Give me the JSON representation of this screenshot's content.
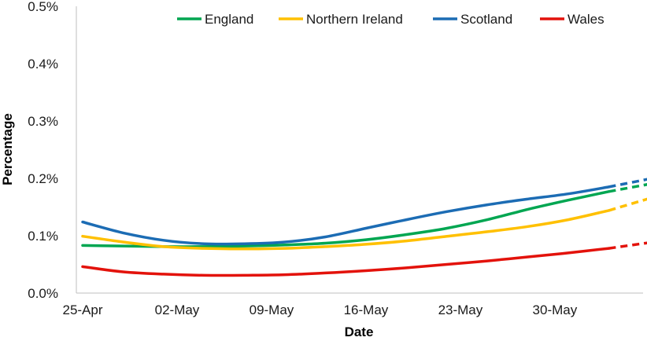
{
  "chart_data": {
    "type": "line",
    "title": "",
    "xlabel": "Date",
    "ylabel": "Percentage",
    "x_ticks": [
      "25-Apr",
      "02-May",
      "09-May",
      "16-May",
      "23-May",
      "30-May"
    ],
    "x_tick_positions": [
      0,
      7,
      14,
      21,
      28,
      35
    ],
    "y_ticks": [
      "0.0%",
      "0.1%",
      "0.2%",
      "0.3%",
      "0.4%",
      "0.5%"
    ],
    "ylim": [
      0,
      0.5
    ],
    "y_unit": "%",
    "grid": false,
    "legend_position": "top",
    "projected_from": 39,
    "series": [
      {
        "name": "England",
        "color": "#00A651",
        "x": [
          0,
          3,
          6,
          9,
          12,
          15,
          18,
          21,
          24,
          27,
          30,
          33,
          36,
          39,
          42
        ],
        "y": [
          0.083,
          0.082,
          0.081,
          0.081,
          0.082,
          0.084,
          0.087,
          0.093,
          0.102,
          0.113,
          0.128,
          0.146,
          0.162,
          0.177,
          0.19
        ]
      },
      {
        "name": "Northern Ireland",
        "color": "#FFC000",
        "x": [
          0,
          3,
          6,
          9,
          12,
          15,
          18,
          21,
          24,
          27,
          30,
          33,
          36,
          39,
          42
        ],
        "y": [
          0.099,
          0.089,
          0.081,
          0.078,
          0.077,
          0.078,
          0.081,
          0.085,
          0.091,
          0.099,
          0.107,
          0.116,
          0.128,
          0.144,
          0.165
        ]
      },
      {
        "name": "Scotland",
        "color": "#1C6CB4",
        "x": [
          0,
          3,
          6,
          9,
          12,
          15,
          18,
          21,
          24,
          27,
          30,
          33,
          36,
          39,
          42
        ],
        "y": [
          0.124,
          0.105,
          0.092,
          0.086,
          0.086,
          0.089,
          0.098,
          0.113,
          0.128,
          0.142,
          0.154,
          0.164,
          0.173,
          0.185,
          0.199
        ]
      },
      {
        "name": "Wales",
        "color": "#E3120B",
        "x": [
          0,
          3,
          6,
          9,
          12,
          15,
          18,
          21,
          24,
          27,
          30,
          33,
          36,
          39,
          42
        ],
        "y": [
          0.046,
          0.037,
          0.033,
          0.031,
          0.031,
          0.032,
          0.035,
          0.039,
          0.044,
          0.05,
          0.056,
          0.063,
          0.07,
          0.078,
          0.088
        ]
      }
    ]
  }
}
